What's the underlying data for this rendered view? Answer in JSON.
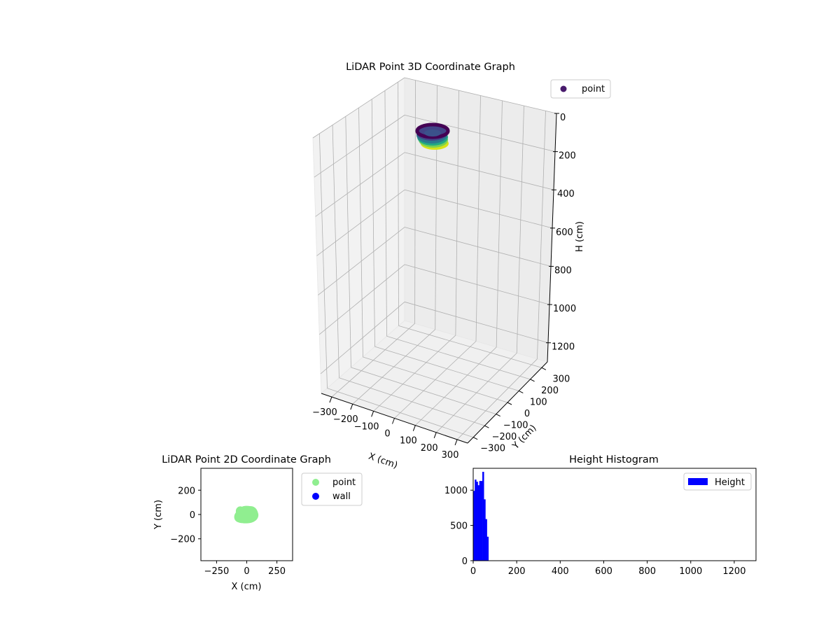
{
  "chart_data": [
    {
      "type": "scatter",
      "projection": "3d",
      "title": "LiDAR Point 3D Coordinate Graph",
      "xlabel": "X (cm)",
      "ylabel": "Y (cm)",
      "zlabel": "H (cm)",
      "x_ticks": [
        "−300",
        "−200",
        "−100",
        "0",
        "100",
        "200",
        "300"
      ],
      "y_ticks": [
        "−300",
        "−200",
        "−100",
        "0",
        "100",
        "200",
        "300"
      ],
      "z_ticks": [
        "0",
        "200",
        "400",
        "600",
        "800",
        "1000",
        "1200"
      ],
      "xlim": [
        -350,
        350
      ],
      "ylim": [
        -350,
        350
      ],
      "zlim": [
        0,
        1300
      ],
      "z_inverted": true,
      "colormap": "viridis",
      "legend": [
        {
          "name": "point",
          "color": "#481a6c"
        }
      ],
      "legend_position": "top-right",
      "grid": true,
      "cluster": {
        "x_range": [
          -80,
          80
        ],
        "y_range": [
          -80,
          80
        ],
        "h_range": [
          0,
          90
        ]
      }
    },
    {
      "type": "scatter",
      "title": "LiDAR Point 2D Coordinate Graph",
      "xlabel": "X (cm)",
      "ylabel": "Y (cm)",
      "x_ticks": [
        "−250",
        "0",
        "250"
      ],
      "y_ticks": [
        "200",
        "0",
        "−200"
      ],
      "xlim": [
        -380,
        380
      ],
      "ylim": [
        -380,
        380
      ],
      "series": [
        {
          "name": "point",
          "color": "#90ee90",
          "shape": "blob",
          "center": [
            0,
            0
          ],
          "radius": [
            95,
            70
          ]
        },
        {
          "name": "wall",
          "color": "#0000ff",
          "points": []
        }
      ],
      "legend_position": "outside-right"
    },
    {
      "type": "bar",
      "title": "Height Histogram",
      "xlabel": "",
      "ylabel": "",
      "x_ticks": [
        "0",
        "200",
        "400",
        "600",
        "800",
        "1000",
        "1200"
      ],
      "y_ticks": [
        "0",
        "500",
        "1000"
      ],
      "xlim": [
        0,
        1300
      ],
      "ylim": [
        0,
        1310
      ],
      "bin_width": 7,
      "bin_start": 0,
      "values": [
        990,
        1150,
        1120,
        1070,
        1130,
        1130,
        1260,
        870,
        590,
        340
      ],
      "color": "#0000ff",
      "legend": [
        {
          "name": "Height",
          "color": "#0000ff"
        }
      ],
      "legend_position": "top-right"
    }
  ]
}
